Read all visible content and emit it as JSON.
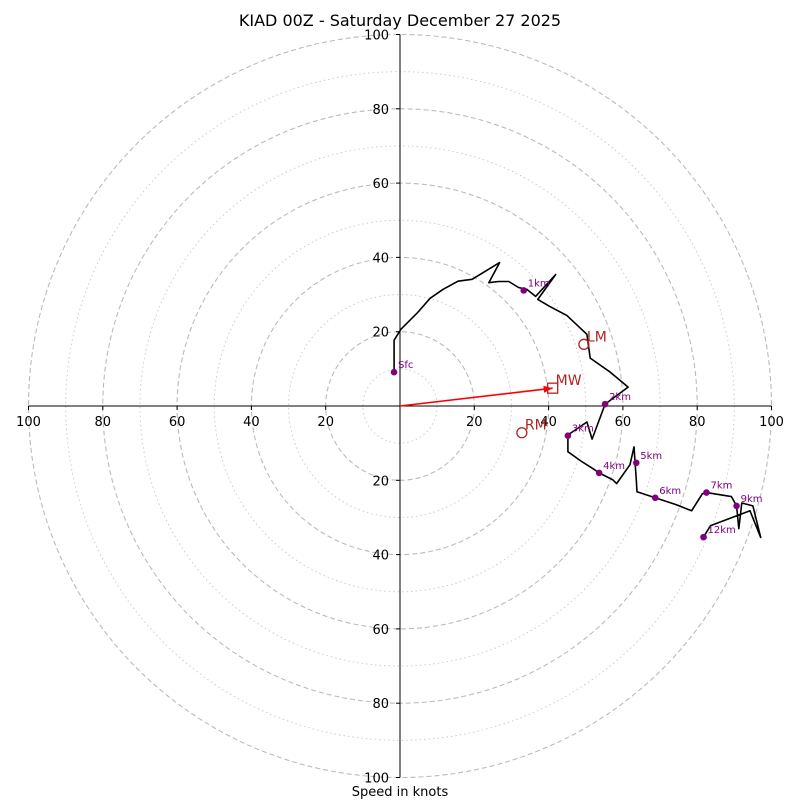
{
  "chart_data": {
    "type": "hodograph",
    "title": "KIAD 00Z - Saturday December 27 2025",
    "xlabel": "Speed in knots",
    "units": "knots",
    "range": [
      -100,
      100
    ],
    "ring_dashed": [
      20,
      40,
      60,
      80,
      100
    ],
    "ring_dotted": [
      10,
      30,
      50,
      70,
      90
    ],
    "x_ticks": [
      {
        "v": -100,
        "label": "100"
      },
      {
        "v": -80,
        "label": "80"
      },
      {
        "v": -60,
        "label": "60"
      },
      {
        "v": -40,
        "label": "40"
      },
      {
        "v": -20,
        "label": "20"
      },
      {
        "v": 20,
        "label": "20"
      },
      {
        "v": 40,
        "label": "40"
      },
      {
        "v": 60,
        "label": "60"
      },
      {
        "v": 80,
        "label": "80"
      },
      {
        "v": 100,
        "label": "100"
      }
    ],
    "y_ticks": [
      {
        "v": 100,
        "label": "100"
      },
      {
        "v": 80,
        "label": "80"
      },
      {
        "v": 60,
        "label": "60"
      },
      {
        "v": 40,
        "label": "40"
      },
      {
        "v": 20,
        "label": "20"
      },
      {
        "v": -20,
        "label": "20"
      },
      {
        "v": -40,
        "label": "40"
      },
      {
        "v": -60,
        "label": "60"
      },
      {
        "v": -80,
        "label": "80"
      },
      {
        "v": -100,
        "label": "100"
      }
    ],
    "wind_profile": [
      [
        -1.6,
        9.1
      ],
      [
        -1.6,
        17.7
      ],
      [
        0.3,
        20.7
      ],
      [
        4.6,
        25.0
      ],
      [
        8.1,
        29.0
      ],
      [
        11.6,
        31.4
      ],
      [
        15.6,
        33.6
      ],
      [
        19.4,
        34.1
      ],
      [
        26.8,
        38.6
      ],
      [
        23.9,
        33.2
      ],
      [
        26.5,
        33.5
      ],
      [
        29.3,
        33.5
      ],
      [
        31.9,
        31.9
      ],
      [
        34.1,
        31.4
      ],
      [
        36.5,
        29.5
      ],
      [
        41.9,
        35.4
      ],
      [
        37.1,
        28.7
      ],
      [
        40.3,
        26.8
      ],
      [
        44.9,
        24.4
      ],
      [
        50.3,
        19.3
      ],
      [
        51.2,
        12.9
      ],
      [
        56.6,
        9.1
      ],
      [
        61.4,
        5.1
      ],
      [
        55.2,
        0.5
      ],
      [
        51.7,
        -8.9
      ],
      [
        50.3,
        -4.3
      ],
      [
        45.2,
        -7.8
      ],
      [
        45.2,
        -12.3
      ],
      [
        48.7,
        -14.8
      ],
      [
        52.0,
        -16.9
      ],
      [
        53.6,
        -18.0
      ],
      [
        57.3,
        -19.9
      ],
      [
        58.3,
        -20.9
      ],
      [
        61.9,
        -15.8
      ],
      [
        63.0,
        -11.0
      ],
      [
        63.6,
        -19.9
      ],
      [
        63.8,
        -23.1
      ],
      [
        68.7,
        -24.7
      ],
      [
        74.4,
        -26.6
      ],
      [
        78.5,
        -28.2
      ],
      [
        81.4,
        -23.6
      ],
      [
        82.5,
        -23.3
      ],
      [
        89.2,
        -24.4
      ],
      [
        90.6,
        -26.9
      ],
      [
        91.2,
        -33.0
      ],
      [
        92.0,
        -26.1
      ],
      [
        95.0,
        -26.9
      ],
      [
        97.1,
        -35.4
      ],
      [
        94.2,
        -28.2
      ],
      [
        83.6,
        -32.2
      ],
      [
        81.7,
        -35.3
      ]
    ],
    "height_markers": [
      {
        "label": "Sfc",
        "u": -1.6,
        "v": 9.1
      },
      {
        "label": "1km",
        "u": 33.3,
        "v": 31.1
      },
      {
        "label": "2km",
        "u": 55.2,
        "v": 0.5
      },
      {
        "label": "3km",
        "u": 45.2,
        "v": -8.0
      },
      {
        "label": "4km",
        "u": 53.6,
        "v": -18.0
      },
      {
        "label": "5km",
        "u": 63.6,
        "v": -15.3
      },
      {
        "label": "6km",
        "u": 68.7,
        "v": -24.7
      },
      {
        "label": "7km",
        "u": 82.5,
        "v": -23.3
      },
      {
        "label": "9km",
        "u": 90.6,
        "v": -26.9
      },
      {
        "label": "12km",
        "u": 81.7,
        "v": -35.3
      }
    ],
    "storm_motion": [
      {
        "label": "LM",
        "u": 49.5,
        "v": 16.6,
        "marker": "circle"
      },
      {
        "label": "MW",
        "u": 41.1,
        "v": 4.8,
        "marker": "square"
      },
      {
        "label": "RM",
        "u": 32.8,
        "v": -7.2,
        "marker": "circle"
      }
    ],
    "mean_wind_vector": {
      "from": [
        0,
        0
      ],
      "to": [
        41.1,
        4.8
      ]
    },
    "colors": {
      "profile": "#000000",
      "marker": "#800080",
      "storm_motion": "#b22222",
      "vector": "#ff0000",
      "grid": "#bbbbbb",
      "axis": "#000000"
    }
  }
}
